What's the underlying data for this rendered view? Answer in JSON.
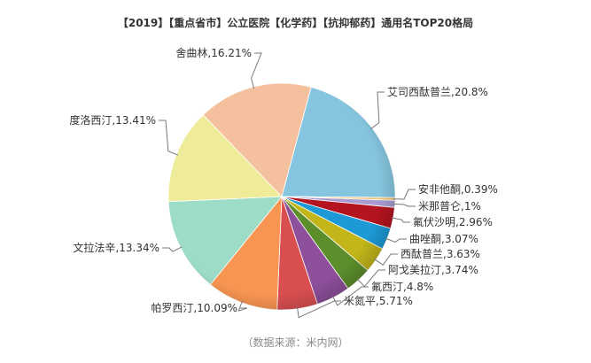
{
  "chart_data": {
    "type": "pie",
    "title": "【2019】【重点省市】公立医院【化学药】【抗抑郁药】通用名TOP20格局",
    "slices": [
      {
        "name": "艾司西酞普兰",
        "value": 20.8,
        "label": "艾司西酞普兰,20.8%",
        "color": "#86c5df"
      },
      {
        "name": "安非他酮",
        "value": 0.39,
        "label": "安非他酮,0.39%",
        "color": "#f0c070"
      },
      {
        "name": "米那普仑",
        "value": 1,
        "label": "米那普仑,1%",
        "color": "#a99bd0"
      },
      {
        "name": "氟伏沙明",
        "value": 2.96,
        "label": "氟伏沙明,2.96%",
        "color": "#b3141f"
      },
      {
        "name": "曲唑酮",
        "value": 3.07,
        "label": "曲唑酮,3.07%",
        "color": "#1d9ad6"
      },
      {
        "name": "西酞普兰",
        "value": 3.63,
        "label": "西酞普兰,3.63%",
        "color": "#c2b61a"
      },
      {
        "name": "阿戈美拉汀",
        "value": 3.74,
        "label": "阿戈美拉汀,3.74%",
        "color": "#5c8f2c"
      },
      {
        "name": "氟西汀",
        "value": 4.8,
        "label": "氟西汀,4.8%",
        "color": "#8e4f9b"
      },
      {
        "name": "米氮平",
        "value": 5.71,
        "label": "米氮平,5.71%",
        "color": "#d94f50"
      },
      {
        "name": "帕罗西汀",
        "value": 10.09,
        "label": "帕罗西汀,10.09%",
        "color": "#f99552"
      },
      {
        "name": "文拉法辛",
        "value": 13.34,
        "label": "文拉法辛,13.34%",
        "color": "#9ddcc7"
      },
      {
        "name": "度洛西汀",
        "value": 13.41,
        "label": "度洛西汀,13.41%",
        "color": "#eeec98"
      },
      {
        "name": "舍曲林",
        "value": 16.21,
        "label": "舍曲林,16.21%",
        "color": "#f5c09e"
      }
    ]
  },
  "source": "（数据来源：米内网）"
}
